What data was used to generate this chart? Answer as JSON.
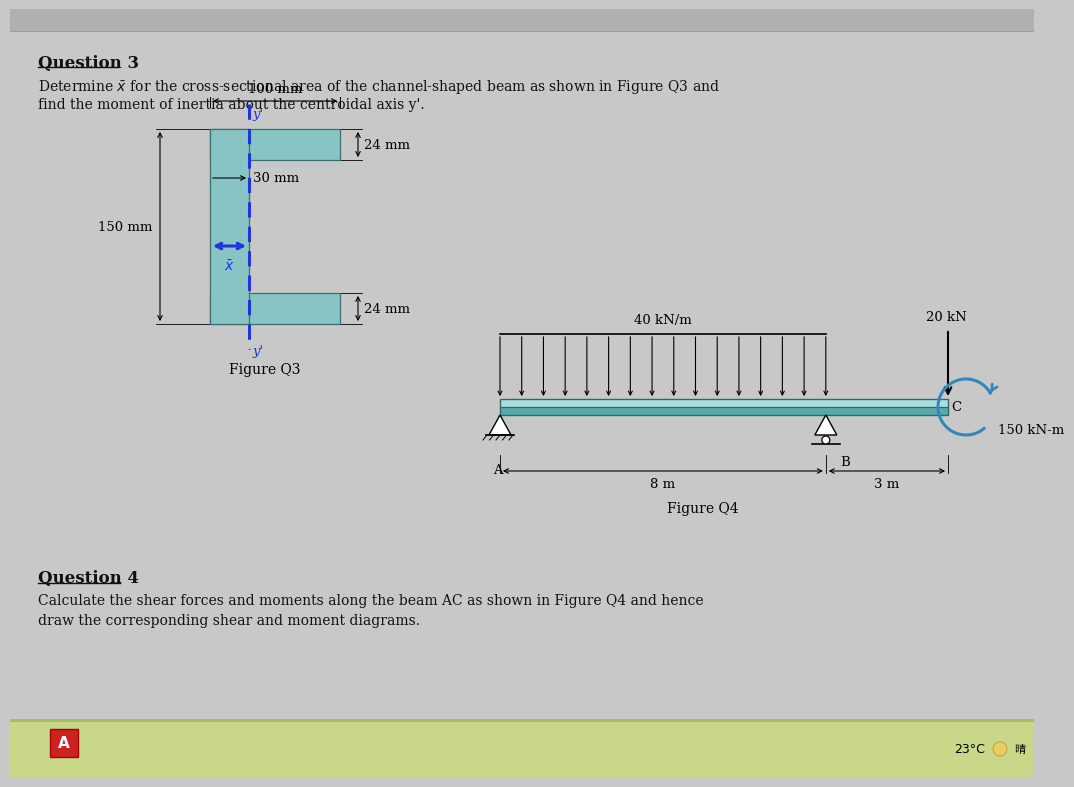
{
  "bg_color": "#c8c8c8",
  "text_color": "#111111",
  "q3_title": "Question 3",
  "q3_line1": "Determine $\\bar{x}$ for the cross-sectional area of the channel-shaped beam as shown in Figure Q3 and",
  "q3_line2": "find the moment of inertia about the centroidal axis y'.",
  "q4_title": "Question 4",
  "q4_line1": "Calculate the shear forces and moments along the beam AC as shown in Figure Q4 and hence",
  "q4_line2": "draw the corresponding shear and moment diagrams.",
  "fig_q3_label": "Figure Q3",
  "fig_q4_label": "Figure Q4",
  "channel_color": "#88c4c4",
  "channel_edge": "#3a7070",
  "beam_color_top": "#a8d8d8",
  "beam_color_bot": "#5a9898",
  "dashed_blue": "#2233dd",
  "arrow_blue": "#2233dd",
  "dim_100mm": "100 mm",
  "dim_24mm_top": "24 mm",
  "dim_30mm": "30 mm",
  "dim_150mm": "150 mm",
  "dim_24mm_bot": "24 mm",
  "load_40": "40 kN/m",
  "load_20": "20 kN",
  "load_150": "150 kN-m",
  "dim_8m": "8 m",
  "dim_3m": "3 m",
  "label_A": "A",
  "label_B": "B",
  "label_C": "C",
  "temp_label": "23°C",
  "toolbar_color": "#b0b0b0",
  "taskbar_color": "#c0d090"
}
